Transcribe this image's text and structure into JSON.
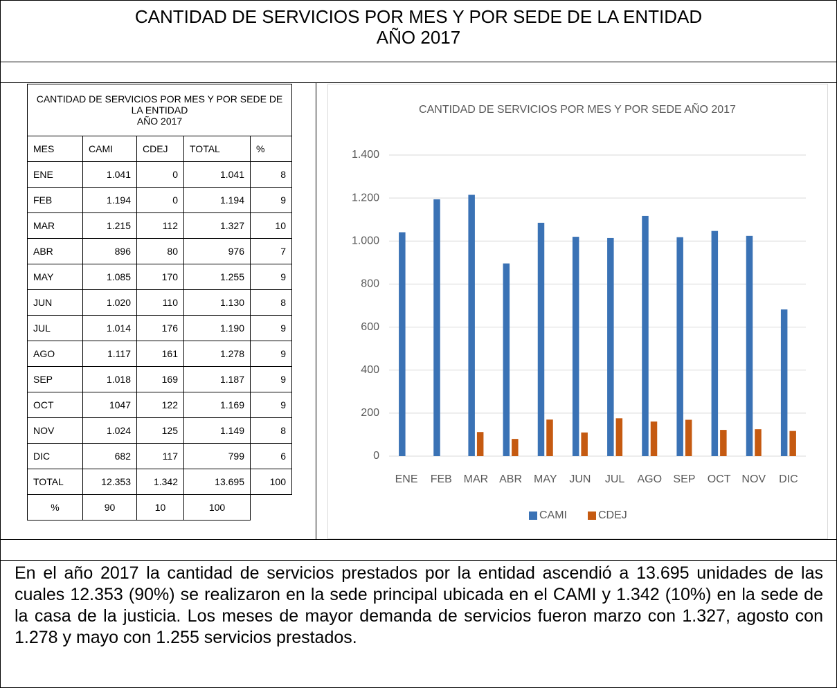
{
  "header": {
    "title": "CANTIDAD DE SERVICIOS POR MES Y POR SEDE DE LA ENTIDAD",
    "subtitle": "AÑO 2017"
  },
  "table": {
    "title": "CANTIDAD DE SERVICIOS POR MES Y POR SEDE DE LA ENTIDAD",
    "subtitle": "AÑO 2017",
    "columns": [
      "MES",
      "CAMI",
      "CDEJ",
      "TOTAL",
      "%"
    ],
    "rows": [
      [
        "ENE",
        "1.041",
        "0",
        "1.041",
        "8"
      ],
      [
        "FEB",
        "1.194",
        "0",
        "1.194",
        "9"
      ],
      [
        "MAR",
        "1.215",
        "112",
        "1.327",
        "10"
      ],
      [
        "ABR",
        "896",
        "80",
        "976",
        "7"
      ],
      [
        "MAY",
        "1.085",
        "170",
        "1.255",
        "9"
      ],
      [
        "JUN",
        "1.020",
        "110",
        "1.130",
        "8"
      ],
      [
        "JUL",
        "1.014",
        "176",
        "1.190",
        "9"
      ],
      [
        "AGO",
        "1.117",
        "161",
        "1.278",
        "9"
      ],
      [
        "SEP",
        "1.018",
        "169",
        "1.187",
        "9"
      ],
      [
        "OCT",
        "1047",
        "122",
        "1.169",
        "9"
      ],
      [
        "NOV",
        "1.024",
        "125",
        "1.149",
        "8"
      ],
      [
        "DIC",
        "682",
        "117",
        "799",
        "6"
      ],
      [
        "TOTAL",
        "12.353",
        "1.342",
        "13.695",
        "100"
      ],
      [
        "%",
        "90",
        "10",
        "100"
      ]
    ]
  },
  "chart_data": {
    "type": "bar",
    "title": "CANTIDAD DE SERVICIOS POR MES Y POR SEDE AÑO 2017",
    "categories": [
      "ENE",
      "FEB",
      "MAR",
      "ABR",
      "MAY",
      "JUN",
      "JUL",
      "AGO",
      "SEP",
      "OCT",
      "NOV",
      "DIC"
    ],
    "series": [
      {
        "name": "CAMI",
        "color": "#3a72b5",
        "values": [
          1041,
          1194,
          1215,
          896,
          1085,
          1020,
          1014,
          1117,
          1018,
          1047,
          1024,
          682
        ]
      },
      {
        "name": "CDEJ",
        "color": "#c55a11",
        "values": [
          0,
          0,
          112,
          80,
          170,
          110,
          176,
          161,
          169,
          122,
          125,
          117
        ]
      }
    ],
    "ylim": [
      0,
      1400
    ],
    "yticks": [
      0,
      200,
      400,
      600,
      800,
      {
        "value": 1000,
        "label": "1.000"
      },
      {
        "value": 1200,
        "label": "1.200"
      },
      {
        "value": 1400,
        "label": "1.400"
      }
    ],
    "grid": true,
    "legend": "bottom"
  },
  "text": "En el año 2017 la cantidad de servicios prestados por la entidad ascendió a 13.695 unidades de las cuales 12.353 (90%) se realizaron en la sede principal ubicada en el CAMI y 1.342 (10%) en la sede de la casa de la justicia. Los meses de mayor demanda de servicios fueron marzo con 1.327, agosto con 1.278 y mayo con 1.255 servicios prestados."
}
